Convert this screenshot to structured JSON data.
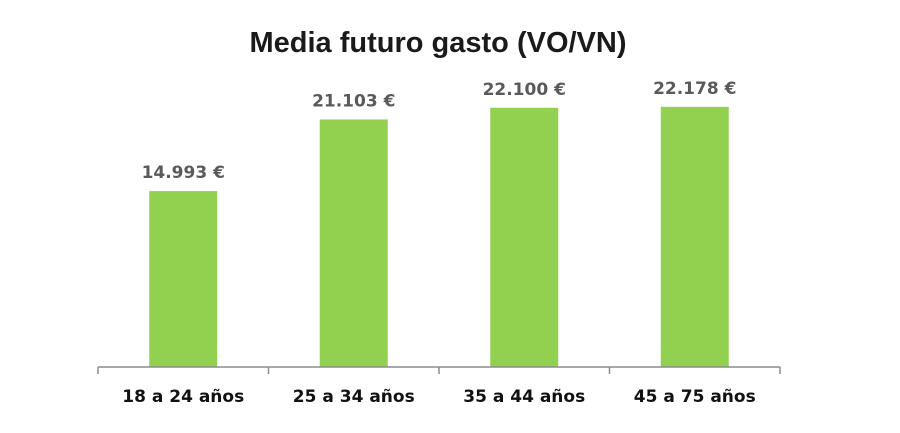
{
  "chart_data": {
    "type": "bar",
    "title": "Media futuro gasto (VO/VN)",
    "xlabel": "",
    "ylabel": "",
    "categories": [
      "18 a 24 años",
      "25 a 34 años",
      "35 a 44 años",
      "45 a 75 años"
    ],
    "values": [
      14993,
      21103,
      22100,
      22178
    ],
    "data_labels": [
      "14.993 €",
      "21.103 €",
      "22.100 €",
      "22.178 €"
    ],
    "ylim": [
      0,
      26000
    ],
    "grid": false,
    "legend": "none",
    "colors": {
      "bar": "#92d050",
      "axis": "#8c8c8c"
    }
  }
}
